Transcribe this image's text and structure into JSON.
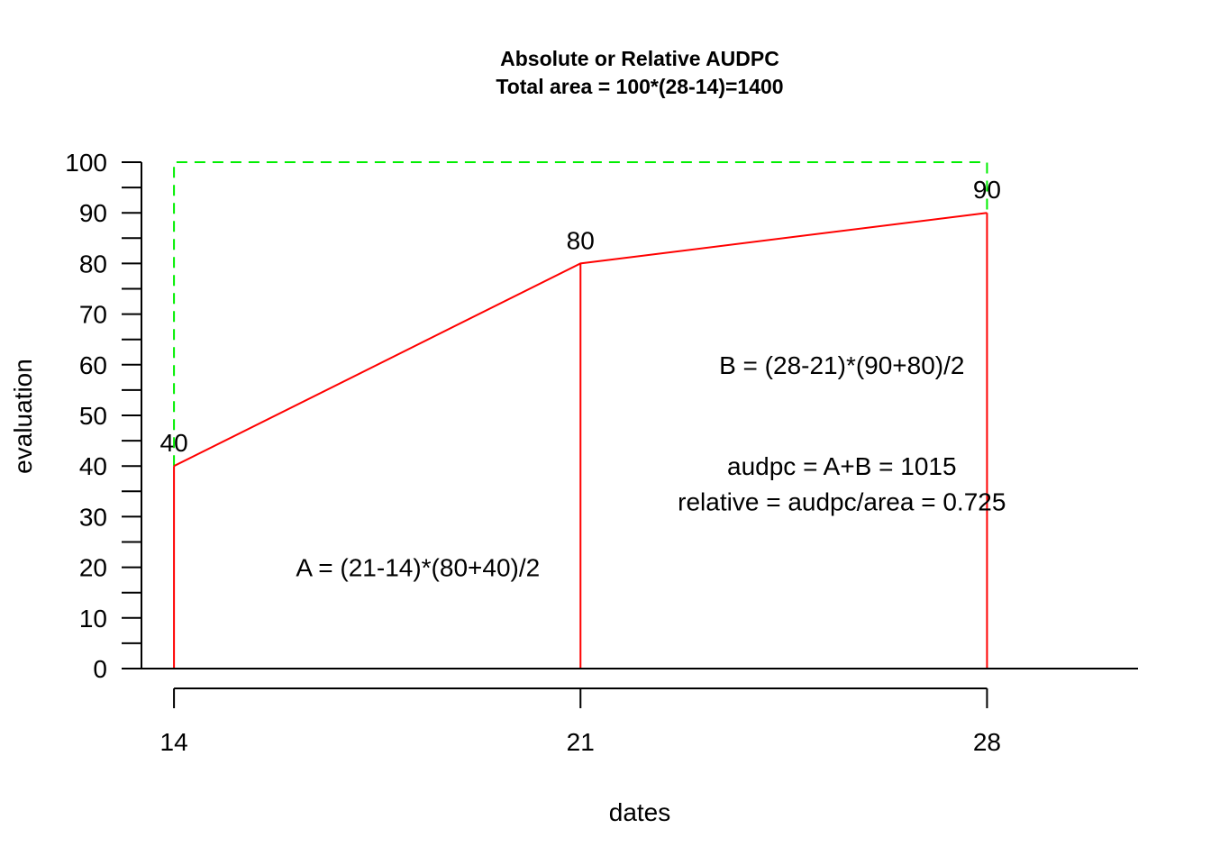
{
  "chart_data": {
    "type": "line",
    "title": "Absolute or Relative AUDPC",
    "subtitle": "Total area = 100*(28-14)=1400",
    "xlabel": "dates",
    "ylabel": "evaluation",
    "x": [
      14,
      21,
      28
    ],
    "series": [
      {
        "values": [
          40,
          80,
          90
        ],
        "color": "#ff0000"
      }
    ],
    "data_labels": [
      "40",
      "80",
      "90"
    ],
    "x_ticks": [
      14,
      21,
      28
    ],
    "x_tick_labels": [
      "14",
      "21",
      "28"
    ],
    "y_ticks": [
      0,
      10,
      20,
      30,
      40,
      50,
      60,
      70,
      80,
      90,
      100
    ],
    "y_tick_labels": [
      "0",
      "10",
      "20",
      "30",
      "40",
      "50",
      "60",
      "70",
      "80",
      "90",
      "100"
    ],
    "y_minor_ticks": [
      5,
      15,
      25,
      35,
      45,
      55,
      65,
      75,
      85,
      95
    ],
    "xlim": [
      13.44,
      30.6
    ],
    "ylim": [
      0,
      100
    ],
    "bounding_value": 100,
    "bounding_color": "#00ee00",
    "grid": false,
    "annotations": {
      "area_a": {
        "text": "A = (21-14)*(80+40)/2",
        "x": 18.2,
        "y": 20
      },
      "area_b": {
        "text": "B = (28-21)*(90+80)/2",
        "x": 25.5,
        "y": 60
      },
      "audpc": {
        "text": "audpc = A+B = 1015",
        "x": 25.5,
        "y": 40
      },
      "relative": {
        "text": "relative = audpc/area = 0.725",
        "x": 25.5,
        "y": 33
      }
    }
  }
}
